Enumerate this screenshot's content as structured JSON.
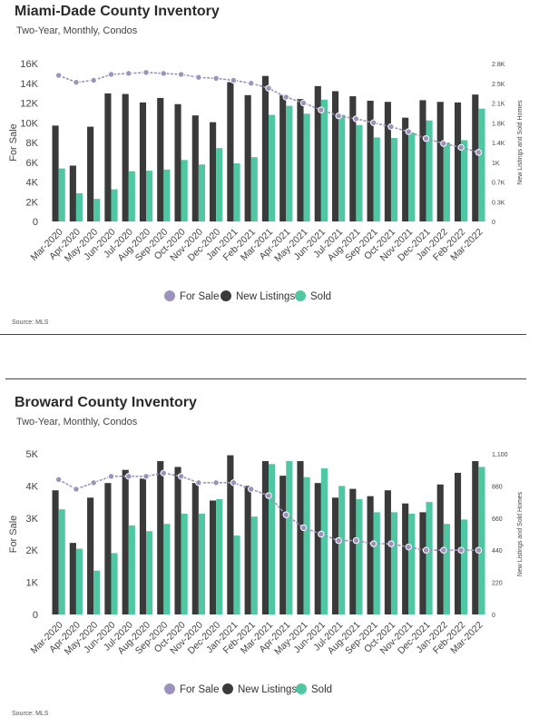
{
  "colors": {
    "for_sale": "#9b93bd",
    "new_listings": "#3a3a3a",
    "sold": "#4fc7a2"
  },
  "charts": [
    {
      "title": "Miami-Dade County Inventory",
      "subtitle": "Two-Year, Monthly, Condos",
      "source": "Source: MLS",
      "ylabel": "For Sale",
      "y2label": "New Listings and Sold Homes",
      "yticks": [
        "0",
        "2K",
        "4K",
        "6K",
        "8K",
        "10K",
        "12K",
        "14K",
        "16K"
      ],
      "y2ticks": [
        "0",
        "0.3K",
        "0.7K",
        "1K",
        "1.4K",
        "1.8K",
        "2.1K",
        "2.5K",
        "2.8K"
      ],
      "legend": [
        "For Sale",
        "New Listings",
        "Sold"
      ]
    },
    {
      "title": "Broward County Inventory",
      "subtitle": "Two-Year, Monthly, Condos",
      "source": "Source: MLS",
      "ylabel": "For Sale",
      "y2label": "New Listings and Sold Homes",
      "yticks": [
        "0",
        "1K",
        "2K",
        "3K",
        "4K",
        "5K"
      ],
      "y2ticks": [
        "0",
        "220",
        "440",
        "660",
        "880",
        "1,100"
      ],
      "legend": [
        "For Sale",
        "New Listings",
        "Sold"
      ]
    }
  ],
  "chart_data": [
    {
      "type": "bar",
      "title": "Miami-Dade County Inventory",
      "subtitle": "Two-Year, Monthly, Condos",
      "xlabel": "",
      "ylabel": "For Sale",
      "y2label": "New Listings and Sold Homes",
      "ylim": [
        0,
        16000
      ],
      "y2lim": [
        0,
        2800
      ],
      "categories": [
        "Mar-2020",
        "Apr-2020",
        "May-2020",
        "Jun-2020",
        "Jul-2020",
        "Aug-2020",
        "Sep-2020",
        "Oct-2020",
        "Nov-2020",
        "Dec-2020",
        "Jan-2021",
        "Feb-2021",
        "Mar-2021",
        "Apr-2021",
        "May-2021",
        "Jun-2021",
        "Jul-2021",
        "Aug-2021",
        "Sep-2021",
        "Oct-2021",
        "Nov-2021",
        "Dec-2021",
        "Jan-2022",
        "Feb-2022",
        "Mar-2022"
      ],
      "series": [
        {
          "name": "For Sale",
          "type": "line",
          "axis": "left",
          "values": [
            14800,
            14100,
            14300,
            14900,
            15000,
            15100,
            15000,
            14900,
            14600,
            14500,
            14300,
            14000,
            13500,
            12600,
            12000,
            11300,
            10700,
            10400,
            10000,
            9600,
            9100,
            8400,
            7900,
            7500,
            7000
          ]
        },
        {
          "name": "New Listings",
          "type": "bar",
          "axis": "right",
          "values": [
            1700,
            990,
            1680,
            2270,
            2260,
            2110,
            2190,
            2080,
            1880,
            1760,
            2470,
            2240,
            2580,
            2240,
            2170,
            2400,
            2310,
            2220,
            2140,
            2120,
            1840,
            2150,
            2120,
            2110,
            2250
          ]
        },
        {
          "name": "Sold",
          "type": "bar",
          "axis": "right",
          "values": [
            940,
            500,
            400,
            570,
            890,
            900,
            920,
            1090,
            1010,
            1300,
            1030,
            1140,
            1890,
            2050,
            1910,
            2160,
            1890,
            1710,
            1490,
            1480,
            1570,
            1790,
            1400,
            1440,
            2000
          ]
        }
      ],
      "legend_position": "bottom"
    },
    {
      "type": "bar",
      "title": "Broward County Inventory",
      "subtitle": "Two-Year, Monthly, Condos",
      "xlabel": "",
      "ylabel": "For Sale",
      "y2label": "New Listings and Sold Homes",
      "ylim": [
        0,
        5000
      ],
      "y2lim": [
        0,
        1100
      ],
      "categories": [
        "Mar-2020",
        "Apr-2020",
        "May-2020",
        "Jun-2020",
        "Jul-2020",
        "Aug-2020",
        "Sep-2020",
        "Oct-2020",
        "Nov-2020",
        "Dec-2020",
        "Jan-2021",
        "Feb-2021",
        "Mar-2021",
        "Apr-2021",
        "May-2021",
        "Jun-2021",
        "Jul-2021",
        "Aug-2021",
        "Sep-2021",
        "Oct-2021",
        "Nov-2021",
        "Dec-2021",
        "Jan-2022",
        "Feb-2022",
        "Mar-2022"
      ],
      "series": [
        {
          "name": "For Sale",
          "type": "line",
          "axis": "left",
          "values": [
            4200,
            3900,
            4100,
            4300,
            4300,
            4300,
            4400,
            4300,
            4100,
            4100,
            4100,
            3900,
            3700,
            3100,
            2700,
            2500,
            2300,
            2300,
            2200,
            2200,
            2100,
            2000,
            2000,
            2000,
            2000
          ]
        },
        {
          "name": "New Listings",
          "type": "bar",
          "axis": "right",
          "values": [
            850,
            490,
            800,
            900,
            990,
            930,
            1050,
            1010,
            900,
            780,
            1090,
            880,
            1050,
            950,
            1050,
            900,
            800,
            860,
            810,
            850,
            760,
            700,
            890,
            970,
            1050
          ]
        },
        {
          "name": "Sold",
          "type": "bar",
          "axis": "right",
          "values": [
            720,
            450,
            300,
            420,
            610,
            570,
            620,
            690,
            690,
            790,
            540,
            670,
            1030,
            1050,
            940,
            1000,
            880,
            790,
            700,
            700,
            690,
            770,
            620,
            650,
            1010
          ]
        }
      ],
      "legend_position": "bottom"
    }
  ]
}
